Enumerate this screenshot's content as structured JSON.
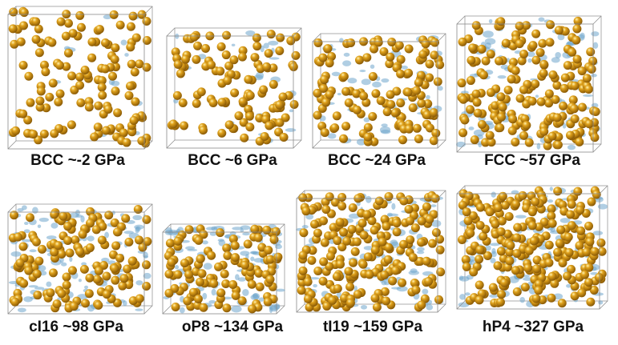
{
  "colors": {
    "atom": "#e0a21c",
    "electron_density": "#6fa6cc",
    "box_edge": "#8a8a8a"
  },
  "panels": [
    {
      "label": "BCC ~-2 GPa"
    },
    {
      "label": "BCC ~6 GPa"
    },
    {
      "label": "BCC ~24 GPa"
    },
    {
      "label": "FCC ~57 GPa"
    },
    {
      "label": "cI16 ~98 GPa"
    },
    {
      "label": "oP8 ~134 GPa"
    },
    {
      "label": "tI19 ~159 GPa"
    },
    {
      "label": "hP4 ~327 GPa"
    }
  ]
}
